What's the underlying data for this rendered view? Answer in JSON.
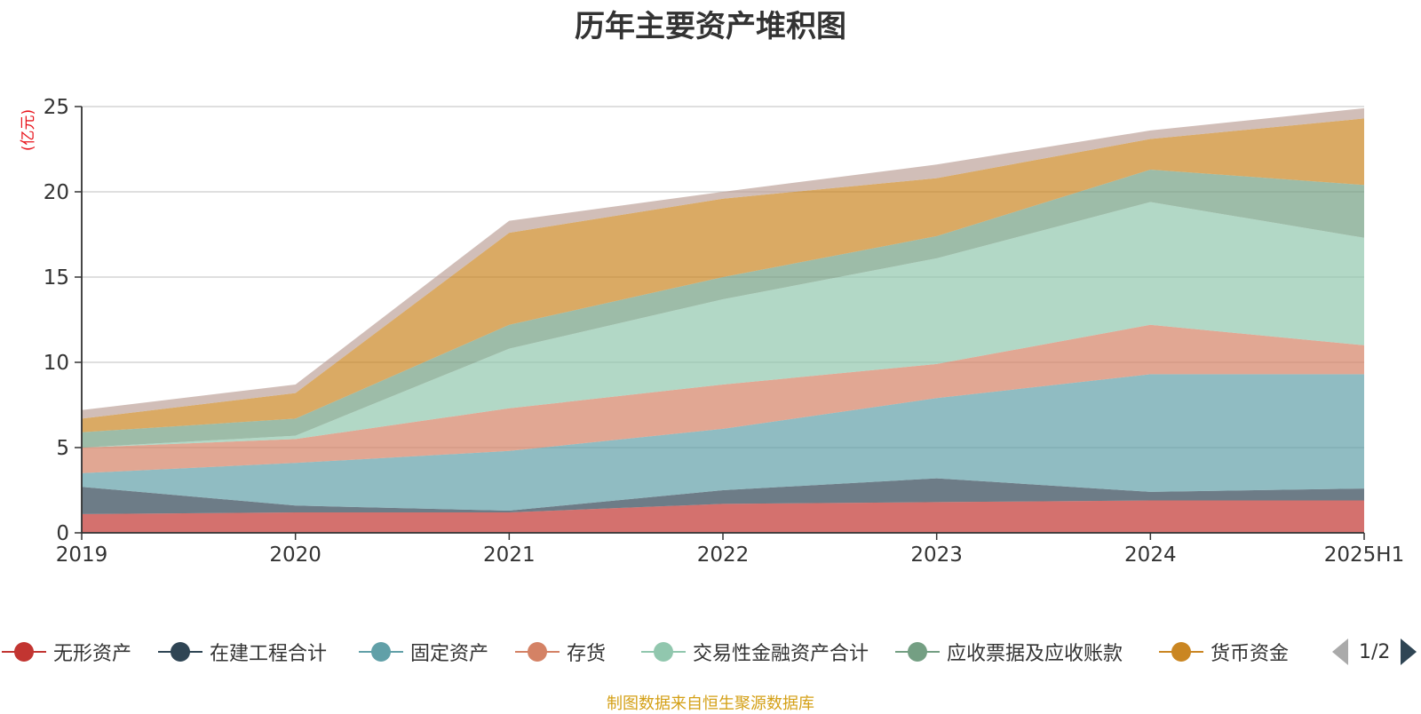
{
  "chart_data": {
    "type": "area",
    "stacked": true,
    "title": "历年主要资产堆积图",
    "ylabel": "(亿元)",
    "xlabel": "",
    "categories": [
      "2019",
      "2020",
      "2021",
      "2022",
      "2023",
      "2024",
      "2025H1"
    ],
    "yticks": [
      "0",
      "5",
      "10",
      "15",
      "20",
      "25"
    ],
    "ylim": [
      0,
      25
    ],
    "grid": true,
    "legend_position": "bottom",
    "series": [
      {
        "name": "无形资产",
        "color": "#c23531",
        "values": [
          1.1,
          1.2,
          1.2,
          1.7,
          1.8,
          1.9,
          1.9
        ]
      },
      {
        "name": "在建工程合计",
        "color": "#2f4554",
        "values": [
          1.6,
          0.4,
          0.1,
          0.8,
          1.4,
          0.5,
          0.7
        ]
      },
      {
        "name": "固定资产",
        "color": "#61a0a8",
        "values": [
          0.8,
          2.5,
          3.5,
          3.6,
          4.7,
          6.9,
          6.7
        ]
      },
      {
        "name": "存货",
        "color": "#d48265",
        "values": [
          1.5,
          1.4,
          2.5,
          2.6,
          2.0,
          2.9,
          1.7
        ]
      },
      {
        "name": "交易性金融资产合计",
        "color": "#91c7ae",
        "values": [
          0.0,
          0.2,
          3.5,
          5.0,
          6.2,
          7.2,
          6.3
        ]
      },
      {
        "name": "应收票据及应收账款",
        "color": "#749f83",
        "values": [
          0.9,
          1.0,
          1.4,
          1.3,
          1.3,
          1.9,
          3.1
        ]
      },
      {
        "name": "货币资金",
        "color": "#ca8622",
        "values": [
          0.8,
          1.5,
          5.4,
          4.6,
          3.4,
          1.8,
          3.9
        ]
      },
      {
        "name": "",
        "color": "#bda29a",
        "values": [
          0.5,
          0.5,
          0.7,
          0.4,
          0.8,
          0.5,
          0.6
        ]
      }
    ]
  },
  "legend": {
    "items": [
      {
        "label": "无形资产",
        "color": "#c23531"
      },
      {
        "label": "在建工程合计",
        "color": "#2f4554"
      },
      {
        "label": "固定资产",
        "color": "#61a0a8"
      },
      {
        "label": "存货",
        "color": "#d48265"
      },
      {
        "label": "交易性金融资产合计",
        "color": "#91c7ae"
      },
      {
        "label": "应收票据及应收账款",
        "color": "#749f83"
      },
      {
        "label": "货币资金",
        "color": "#ca8622"
      }
    ],
    "page_indicator": "1/2"
  },
  "footer": {
    "source": "制图数据来自恒生聚源数据库"
  }
}
